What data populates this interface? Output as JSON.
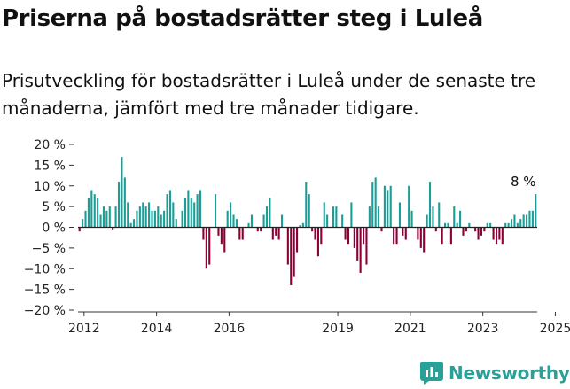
{
  "title": "Priserna på bostadsrätter steg i Luleå",
  "subtitle": "Prisutveckling för bostadsrätter i Luleå under de senaste tre månaderna, jämfört med tre månader tidigare.",
  "brand": {
    "name": "Newsworthy",
    "icon": "newsworthy-logo-icon",
    "color": "#2aa198"
  },
  "colors": {
    "positive": "#1a9e96",
    "negative": "#8b0035",
    "zero_line": "#222222"
  },
  "chart_data": {
    "type": "bar",
    "title": "",
    "xlabel": "",
    "ylabel": "",
    "x_start": "2011-11",
    "x_ticks": [
      "2012",
      "2014",
      "2016",
      "2019",
      "2021",
      "2023",
      "2025"
    ],
    "y_ticks": [
      "20 %",
      "15 %",
      "10 %",
      "5 %",
      "0 %",
      "−5 %",
      "−10 %",
      "−15 %",
      "−20 %"
    ],
    "ylim": [
      -20,
      20
    ],
    "grid": false,
    "annotation": {
      "text": "8 %",
      "target": "last"
    },
    "values": [
      -1,
      2,
      4,
      7,
      9,
      8,
      7,
      3,
      5,
      4,
      5,
      -0.5,
      5,
      11,
      17,
      12,
      6,
      1,
      2,
      4,
      5,
      6,
      5,
      6,
      4,
      4,
      5,
      3,
      4,
      8,
      9,
      6,
      2,
      0,
      4,
      7,
      9,
      7,
      6,
      8,
      9,
      -3,
      -10,
      -9,
      0,
      8,
      -2,
      -4,
      -6,
      4,
      6,
      3,
      2,
      -3,
      -3,
      0,
      1,
      3,
      0,
      -1,
      -1,
      3,
      5,
      7,
      -3,
      -2,
      -3,
      3,
      0,
      -9,
      -14,
      -12,
      -6,
      0.5,
      1,
      11,
      8,
      -1,
      -3,
      -7,
      -4,
      6,
      3,
      0,
      5,
      5,
      0,
      3,
      -3,
      -4,
      6,
      -5,
      -8,
      -11,
      -4,
      -9,
      5,
      11,
      12,
      5,
      -1,
      10,
      9,
      10,
      -4,
      -4,
      6,
      -2,
      -3,
      10,
      4,
      0,
      -3,
      -5,
      -6,
      3,
      11,
      5,
      -1,
      6,
      -4,
      1,
      1,
      -4,
      5,
      1,
      4,
      -2,
      -1,
      1,
      0,
      -1,
      -3,
      -2,
      -1,
      1,
      1,
      -3,
      -4,
      -3,
      -4,
      1,
      1,
      2,
      3,
      1,
      2,
      3,
      3,
      4,
      4,
      8
    ]
  }
}
